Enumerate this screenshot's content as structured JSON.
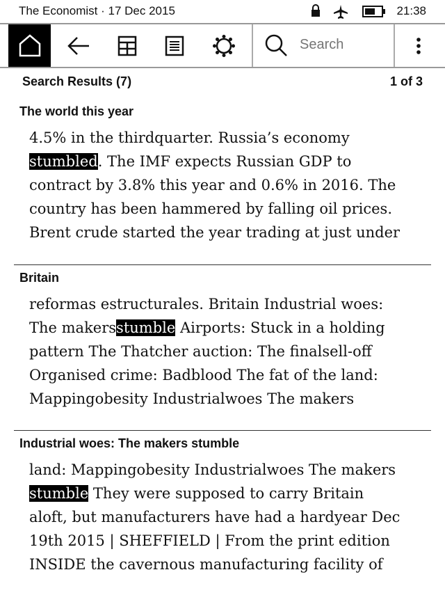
{
  "status": {
    "title": "The Economist · 17 Dec 2015",
    "time": "21:38",
    "icons": [
      "lock-icon",
      "airplane-icon",
      "battery-icon"
    ]
  },
  "toolbar": {
    "buttons": [
      "home",
      "back",
      "grid-view",
      "page-view",
      "settings"
    ],
    "search_placeholder": "Search"
  },
  "results_header": {
    "title": "Search Results (7)",
    "page": "1 of 3"
  },
  "results": [
    {
      "title": "The world this year",
      "before": "4.5% in the thirdquarter. Russia’s economy\n",
      "match": "stumbled",
      "after": ". The IMF expects Russian GDP to\ncontract by 3.8% this year and 0.6% in 2016. The\ncountry has been hammered by falling oil prices.\nBrent crude started the year trading at just under"
    },
    {
      "title": "Britain",
      "before": "reformas estructurales. Britain Industrial woes:\nThe makers",
      "match": "stumble",
      "after": " Airports: Stuck in a holding\npattern The Thatcher auction: The finalsell-off\nOrganised crime: Badblood The fat of the land:\nMappingobesity Industrialwoes The makers"
    },
    {
      "title": "Industrial woes: The makers stumble",
      "before": "land: Mappingobesity Industrialwoes The makers\n",
      "match": "stumble",
      "after": " They were supposed to carry Britain\naloft, but manufacturers have had a hardyear Dec\n19th 2015 | SHEFFIELD | From the print edition\nINSIDE the cavernous manufacturing facility of"
    }
  ]
}
